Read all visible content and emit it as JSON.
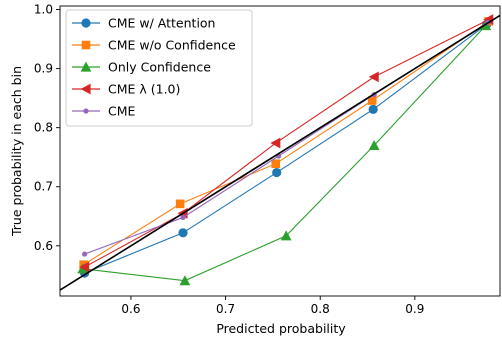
{
  "chart_data": {
    "type": "line",
    "title": "",
    "xlabel": "Predicted probability",
    "ylabel": "True probability in each bin",
    "xlim": [
      0.525,
      0.99
    ],
    "ylim": [
      0.515,
      1.006
    ],
    "xticks": [
      0.6,
      0.7,
      0.8,
      0.9
    ],
    "xtick_labels": [
      "0.6",
      "0.7",
      "0.8",
      "0.9"
    ],
    "yticks": [
      0.6,
      0.7,
      0.8,
      0.9,
      1.0
    ],
    "ytick_labels": [
      "0.6",
      "0.7",
      "0.8",
      "0.9",
      "1.0"
    ],
    "grid": false,
    "legend_position": "top-left",
    "diagonal": {
      "color": "#000000",
      "x": [
        0.525,
        0.99
      ],
      "y": [
        0.525,
        0.99
      ]
    },
    "series": [
      {
        "name": "CME w/ Attention",
        "color": "#1f77b4",
        "marker": "circle",
        "x": [
          0.551,
          0.655,
          0.754,
          0.856,
          0.976
        ],
        "y": [
          0.554,
          0.622,
          0.724,
          0.831,
          0.975
        ]
      },
      {
        "name": "CME w/o Confidence",
        "color": "#ff7f0e",
        "marker": "square",
        "x": [
          0.55,
          0.652,
          0.753,
          0.855,
          0.978
        ],
        "y": [
          0.568,
          0.671,
          0.739,
          0.846,
          0.98
        ]
      },
      {
        "name": "Only Confidence",
        "color": "#2ca02c",
        "marker": "triangle-up",
        "x": [
          0.549,
          0.657,
          0.764,
          0.857,
          0.975
        ],
        "y": [
          0.561,
          0.541,
          0.617,
          0.77,
          0.973
        ]
      },
      {
        "name": "CME λ (1.0)",
        "color": "#d62728",
        "marker": "triangle-left",
        "x": [
          0.551,
          0.655,
          0.753,
          0.857,
          0.978
        ],
        "y": [
          0.564,
          0.655,
          0.774,
          0.886,
          0.983
        ]
      },
      {
        "name": "CME",
        "color": "#9467bd",
        "marker": "dot",
        "x": [
          0.551,
          0.655,
          0.756,
          0.857,
          0.977
        ],
        "y": [
          0.586,
          0.648,
          0.752,
          0.856,
          0.978
        ]
      }
    ]
  }
}
